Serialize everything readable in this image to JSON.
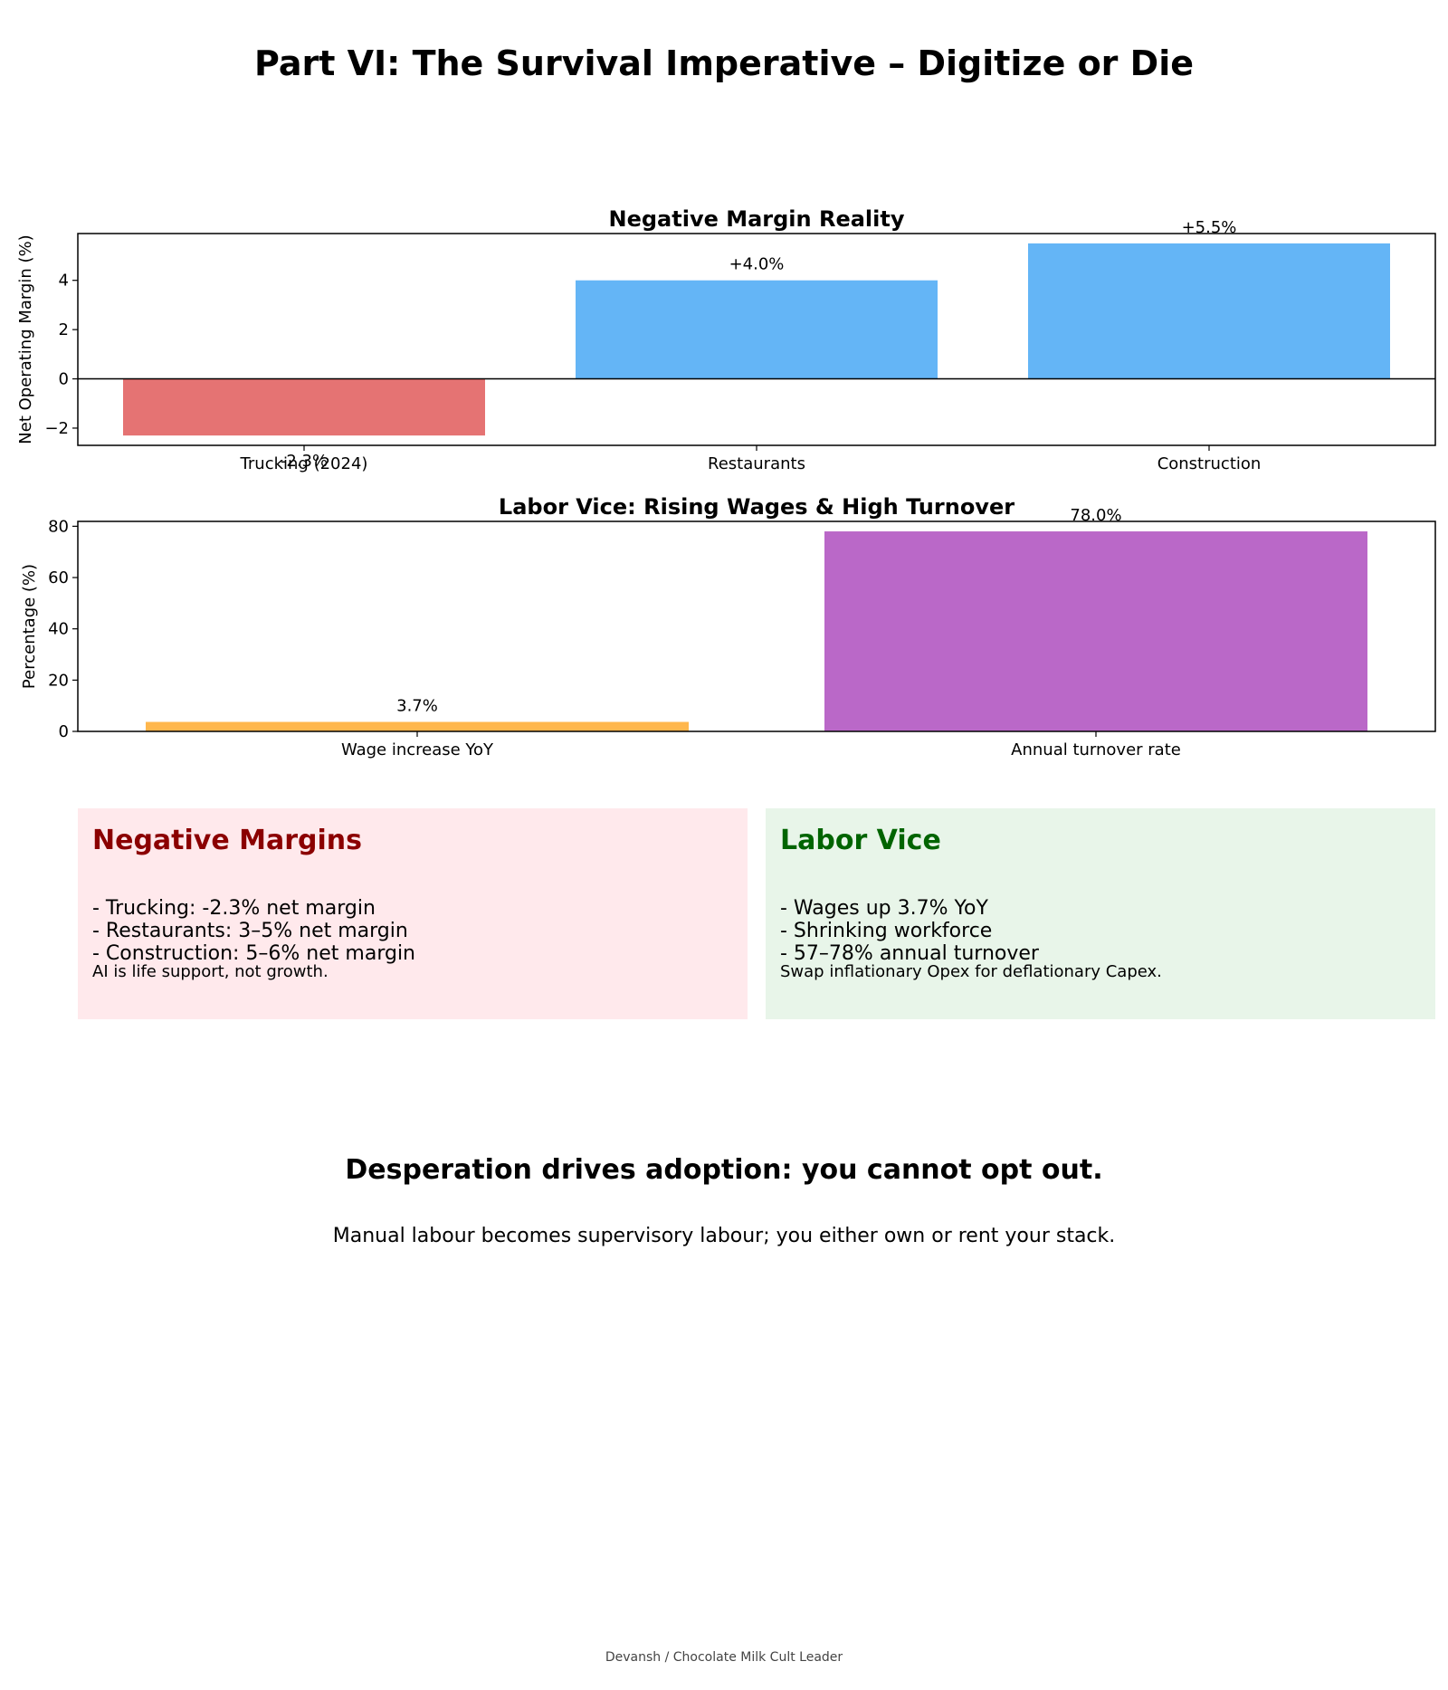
{
  "page": {
    "title": "Part VI: The Survival Imperative – Digitize or Die",
    "footer": "Devansh / Chocolate Milk Cult Leader"
  },
  "chart_data": [
    {
      "type": "bar",
      "title": "Negative Margin Reality",
      "ylabel": "Net Operating Margin (%)",
      "categories": [
        "Trucking (2024)",
        "Restaurants",
        "Construction"
      ],
      "values": [
        -2.3,
        4.0,
        5.5
      ],
      "data_labels": [
        "-2.3%",
        "+4.0%",
        "+5.5%"
      ],
      "colors": [
        "#e57373",
        "#64b5f6",
        "#64b5f6"
      ],
      "ylim": [
        -2.7,
        5.9
      ],
      "yticks": [
        -2,
        0,
        2,
        4
      ],
      "zero_line": true,
      "grid": false
    },
    {
      "type": "bar",
      "title": "Labor Vice: Rising Wages & High Turnover",
      "ylabel": "Percentage (%)",
      "categories": [
        "Wage increase YoY",
        "Annual turnover rate"
      ],
      "values": [
        3.7,
        78.0
      ],
      "data_labels": [
        "3.7%",
        "78.0%"
      ],
      "colors": [
        "#ffb74d",
        "#ba68c8"
      ],
      "ylim": [
        0,
        81.9
      ],
      "yticks": [
        0,
        20,
        40,
        60,
        80
      ],
      "grid": false
    }
  ],
  "boxes": {
    "left": {
      "title": "Negative Margins",
      "lines": [
        "- Trucking: -2.3% net margin",
        "- Restaurants: 3–5% net margin",
        "- Construction: 5–6% net margin"
      ],
      "note": "AI is life support, not growth.",
      "bg": "#ffe9ec",
      "title_color": "#8b0000"
    },
    "right": {
      "title": "Labor Vice",
      "lines": [
        "- Wages up 3.7% YoY",
        "- Shrinking workforce",
        "- 57–78% annual turnover"
      ],
      "note": "Swap inflationary Opex for deflationary Capex.",
      "bg": "#e8f5e9",
      "title_color": "#006400"
    }
  },
  "bottom": {
    "headline": "Desperation drives adoption: you cannot opt out.",
    "subtext": "Manual labour becomes supervisory labour; you either own or rent your stack."
  }
}
